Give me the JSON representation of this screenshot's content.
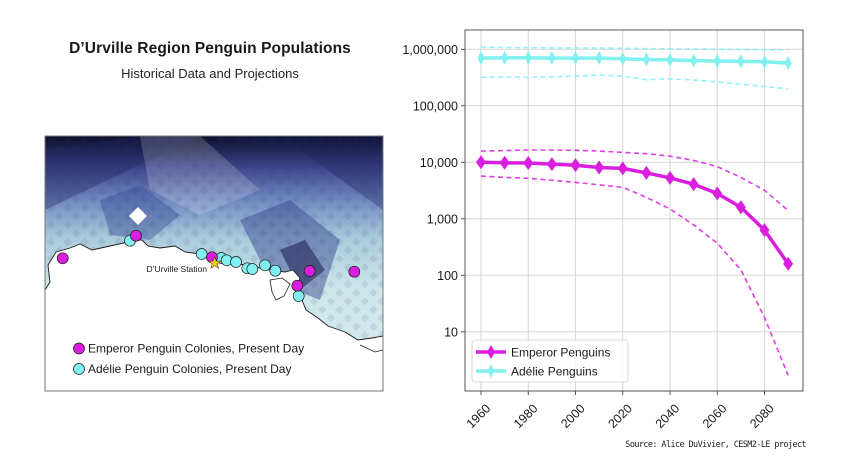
{
  "header": {
    "title": "D’Urville Region Penguin Populations",
    "subtitle": "Historical Data and Projections"
  },
  "map": {
    "station_label": "D’Urville Station",
    "legend": [
      {
        "label": "Emperor Penguin Colonies, Present Day",
        "color": "#d91ee0"
      },
      {
        "label": "Adélie Penguin Colonies, Present Day",
        "color": "#80f0f0"
      }
    ],
    "colors": {
      "emperor": "#d91ee0",
      "adelie": "#80f0f0",
      "station_star": "#f5c518",
      "ice_dark": "#0d1030",
      "ice_mid": "#4a5aa0",
      "ice_light": "#cfe8ec"
    }
  },
  "source": "Source: Alice DuVivier, CESM2-LE project",
  "chart_data": {
    "type": "line",
    "title": "",
    "xlabel": "",
    "ylabel": "",
    "yscale": "log",
    "ylim": [
      1,
      2000000
    ],
    "xlim": [
      1953,
      2097
    ],
    "grid": true,
    "legend_position": "bottom-left",
    "yticks": [
      10,
      100,
      1000,
      10000,
      100000,
      1000000
    ],
    "ytick_labels": [
      "10",
      "100",
      "1,000",
      "10,000",
      "100,000",
      "1,000,000"
    ],
    "xticks": [
      1960,
      1980,
      2000,
      2020,
      2040,
      2060,
      2080
    ],
    "xtick_labels": [
      "1960",
      "1980",
      "2000",
      "2020",
      "2040",
      "2060",
      "2080"
    ],
    "x": [
      1960,
      1970,
      1980,
      1990,
      2000,
      2010,
      2020,
      2030,
      2040,
      2050,
      2060,
      2070,
      2080,
      2090
    ],
    "series": [
      {
        "name": "Emperor Penguins",
        "color": "#d91ee0",
        "marker": "diamond",
        "values": [
          10000,
          9800,
          9700,
          9300,
          8900,
          8100,
          7800,
          6500,
          5300,
          4100,
          2800,
          1600,
          630,
          160
        ],
        "upper": [
          15800,
          16100,
          16500,
          16500,
          16300,
          15800,
          15000,
          14200,
          12800,
          10800,
          8400,
          5400,
          3200,
          1400
        ],
        "lower": [
          5700,
          5400,
          5200,
          4800,
          4400,
          4000,
          3600,
          2400,
          1500,
          780,
          370,
          125,
          18,
          1.7
        ]
      },
      {
        "name": "Adélie Penguins",
        "color": "#80f0f0",
        "marker": "thin_diamond",
        "values": [
          700000,
          710000,
          710000,
          700000,
          700000,
          700000,
          680000,
          660000,
          650000,
          630000,
          620000,
          610000,
          600000,
          570000
        ],
        "upper": [
          1100000,
          1080000,
          1070000,
          1060000,
          1050000,
          1050000,
          1040000,
          1030000,
          1020000,
          1010000,
          1000000,
          990000,
          980000,
          970000
        ],
        "lower": [
          320000,
          325000,
          320000,
          325000,
          335000,
          350000,
          335000,
          290000,
          300000,
          285000,
          265000,
          240000,
          220000,
          200000
        ]
      }
    ]
  }
}
